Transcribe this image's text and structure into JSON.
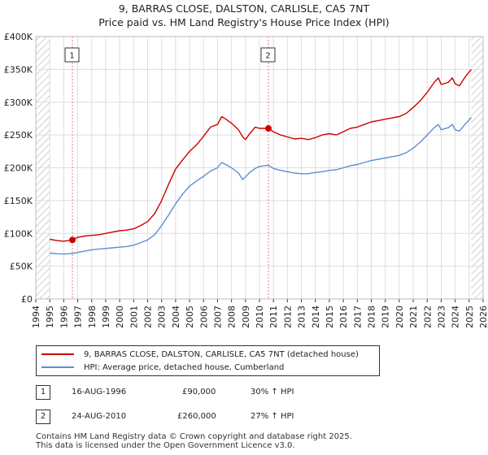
{
  "chart_data": {
    "type": "line",
    "title": "9, BARRAS CLOSE, DALSTON, CARLISLE, CA5 7NT",
    "subtitle": "Price paid vs. HM Land Registry's House Price Index (HPI)",
    "y_ticks": [
      "£0",
      "£50K",
      "£100K",
      "£150K",
      "£200K",
      "£250K",
      "£300K",
      "£350K",
      "£400K"
    ],
    "x_ticks": [
      "1994",
      "1995",
      "1996",
      "1997",
      "1998",
      "1999",
      "2000",
      "2001",
      "2002",
      "2003",
      "2004",
      "2005",
      "2006",
      "2007",
      "2008",
      "2009",
      "2010",
      "2011",
      "2012",
      "2013",
      "2014",
      "2015",
      "2016",
      "2017",
      "2018",
      "2019",
      "2020",
      "2021",
      "2022",
      "2023",
      "2024",
      "2025",
      "2026"
    ],
    "xlim": [
      1994,
      2026
    ],
    "ylim": [
      0,
      400000
    ],
    "series": [
      {
        "name": "9, BARRAS CLOSE, DALSTON, CARLISLE, CA5 7NT (detached house)",
        "color": "#cc0000",
        "points": [
          [
            1995.0,
            91000
          ],
          [
            1995.5,
            89000
          ],
          [
            1996.0,
            88000
          ],
          [
            1996.62,
            90000
          ],
          [
            1997.0,
            94000
          ],
          [
            1997.5,
            96000
          ],
          [
            1998.0,
            97000
          ],
          [
            1998.5,
            98000
          ],
          [
            1999.0,
            100000
          ],
          [
            1999.5,
            102000
          ],
          [
            2000.0,
            104000
          ],
          [
            2000.5,
            105000
          ],
          [
            2001.0,
            107000
          ],
          [
            2001.5,
            112000
          ],
          [
            2002.0,
            118000
          ],
          [
            2002.5,
            130000
          ],
          [
            2003.0,
            150000
          ],
          [
            2003.5,
            175000
          ],
          [
            2004.0,
            198000
          ],
          [
            2004.5,
            212000
          ],
          [
            2005.0,
            225000
          ],
          [
            2005.5,
            235000
          ],
          [
            2006.0,
            248000
          ],
          [
            2006.5,
            262000
          ],
          [
            2007.0,
            266000
          ],
          [
            2007.3,
            278000
          ],
          [
            2007.6,
            274000
          ],
          [
            2008.0,
            268000
          ],
          [
            2008.5,
            258000
          ],
          [
            2008.8,
            247000
          ],
          [
            2009.0,
            243000
          ],
          [
            2009.3,
            252000
          ],
          [
            2009.7,
            262000
          ],
          [
            2010.0,
            260000
          ],
          [
            2010.64,
            260000
          ],
          [
            2011.0,
            255000
          ],
          [
            2011.5,
            250000
          ],
          [
            2012.0,
            247000
          ],
          [
            2012.5,
            244000
          ],
          [
            2013.0,
            245000
          ],
          [
            2013.5,
            243000
          ],
          [
            2014.0,
            246000
          ],
          [
            2014.5,
            250000
          ],
          [
            2015.0,
            252000
          ],
          [
            2015.5,
            250000
          ],
          [
            2016.0,
            255000
          ],
          [
            2016.5,
            260000
          ],
          [
            2017.0,
            262000
          ],
          [
            2017.5,
            266000
          ],
          [
            2018.0,
            270000
          ],
          [
            2018.5,
            272000
          ],
          [
            2019.0,
            274000
          ],
          [
            2019.5,
            276000
          ],
          [
            2020.0,
            278000
          ],
          [
            2020.5,
            283000
          ],
          [
            2021.0,
            292000
          ],
          [
            2021.5,
            302000
          ],
          [
            2022.0,
            315000
          ],
          [
            2022.5,
            330000
          ],
          [
            2022.8,
            337000
          ],
          [
            2023.0,
            327000
          ],
          [
            2023.5,
            330000
          ],
          [
            2023.8,
            337000
          ],
          [
            2024.0,
            328000
          ],
          [
            2024.3,
            325000
          ],
          [
            2024.7,
            338000
          ],
          [
            2025.0,
            346000
          ],
          [
            2025.15,
            350000
          ]
        ]
      },
      {
        "name": "HPI: Average price, detached house, Cumberland",
        "color": "#5b8fd0",
        "points": [
          [
            1995.0,
            70000
          ],
          [
            1995.5,
            69000
          ],
          [
            1996.0,
            68500
          ],
          [
            1996.62,
            69500
          ],
          [
            1997.0,
            71000
          ],
          [
            1997.5,
            73000
          ],
          [
            1998.0,
            75000
          ],
          [
            1998.5,
            76000
          ],
          [
            1999.0,
            77000
          ],
          [
            1999.5,
            78000
          ],
          [
            2000.0,
            79000
          ],
          [
            2000.5,
            80000
          ],
          [
            2001.0,
            82000
          ],
          [
            2001.5,
            86000
          ],
          [
            2002.0,
            90000
          ],
          [
            2002.5,
            98000
          ],
          [
            2003.0,
            112000
          ],
          [
            2003.5,
            128000
          ],
          [
            2004.0,
            145000
          ],
          [
            2004.5,
            160000
          ],
          [
            2005.0,
            172000
          ],
          [
            2005.5,
            180000
          ],
          [
            2006.0,
            187000
          ],
          [
            2006.5,
            195000
          ],
          [
            2007.0,
            200000
          ],
          [
            2007.3,
            208000
          ],
          [
            2007.6,
            205000
          ],
          [
            2008.0,
            200000
          ],
          [
            2008.5,
            192000
          ],
          [
            2008.8,
            182000
          ],
          [
            2009.0,
            186000
          ],
          [
            2009.3,
            193000
          ],
          [
            2009.7,
            199000
          ],
          [
            2010.0,
            202000
          ],
          [
            2010.64,
            204000
          ],
          [
            2011.0,
            199000
          ],
          [
            2011.5,
            196000
          ],
          [
            2012.0,
            194000
          ],
          [
            2012.5,
            192000
          ],
          [
            2013.0,
            191000
          ],
          [
            2013.5,
            191000
          ],
          [
            2014.0,
            193000
          ],
          [
            2014.5,
            194000
          ],
          [
            2015.0,
            196000
          ],
          [
            2015.5,
            197000
          ],
          [
            2016.0,
            200000
          ],
          [
            2016.5,
            203000
          ],
          [
            2017.0,
            205000
          ],
          [
            2017.5,
            208000
          ],
          [
            2018.0,
            211000
          ],
          [
            2018.5,
            213000
          ],
          [
            2019.0,
            215000
          ],
          [
            2019.5,
            217000
          ],
          [
            2020.0,
            219000
          ],
          [
            2020.5,
            223000
          ],
          [
            2021.0,
            230000
          ],
          [
            2021.5,
            239000
          ],
          [
            2022.0,
            250000
          ],
          [
            2022.5,
            261000
          ],
          [
            2022.8,
            266000
          ],
          [
            2023.0,
            258000
          ],
          [
            2023.5,
            261000
          ],
          [
            2023.8,
            266000
          ],
          [
            2024.0,
            258000
          ],
          [
            2024.3,
            256000
          ],
          [
            2024.7,
            266000
          ],
          [
            2025.0,
            273000
          ],
          [
            2025.15,
            277000
          ]
        ]
      }
    ],
    "annotations": [
      {
        "label": "1",
        "x": 1996.62,
        "y": 90000,
        "date": "16-AUG-1996",
        "price": "£90,000",
        "hpi": "30% ↑ HPI"
      },
      {
        "label": "2",
        "x": 2010.64,
        "y": 260000,
        "date": "24-AUG-2010",
        "price": "£260,000",
        "hpi": "27% ↑ HPI"
      }
    ],
    "hatched_regions": [
      [
        1994,
        1995.0
      ],
      [
        2025.15,
        2026
      ]
    ]
  },
  "legend": {
    "red_label": "9, BARRAS CLOSE, DALSTON, CARLISLE, CA5 7NT (detached house)",
    "blue_label": "HPI: Average price, detached house, Cumberland"
  },
  "footer": {
    "line1": "Contains HM Land Registry data © Crown copyright and database right 2025.",
    "line2": "This data is licensed under the Open Government Licence v3.0."
  }
}
